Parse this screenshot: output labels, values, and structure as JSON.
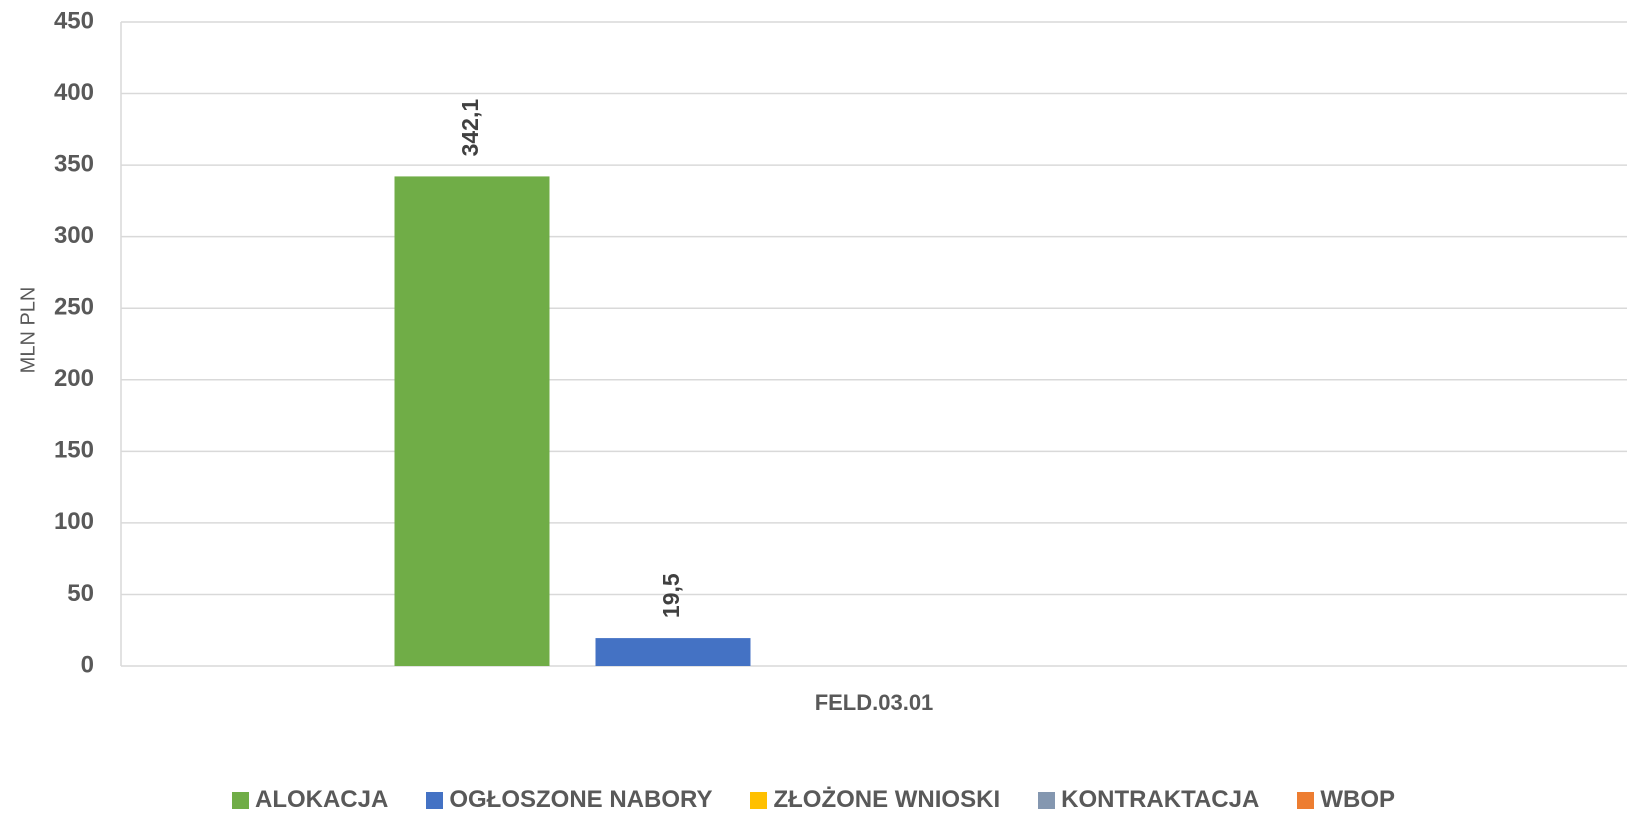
{
  "chart_data": {
    "type": "bar",
    "categories": [
      "FELD.03.01"
    ],
    "ylabel": "MLN PLN",
    "ylim": [
      0,
      450
    ],
    "yticks": [
      0,
      50,
      100,
      150,
      200,
      250,
      300,
      350,
      400,
      450
    ],
    "grid": true,
    "legend_position": "bottom",
    "series": [
      {
        "name": "ALOKACJA",
        "values": [
          342.1
        ],
        "label": "342,1",
        "color": "#70AD47"
      },
      {
        "name": "OGŁOSZONE NABORY",
        "values": [
          19.5
        ],
        "label": "19,5",
        "color": "#4472C4"
      },
      {
        "name": "ZŁOŻONE WNIOSKI",
        "values": [
          0
        ],
        "label": "",
        "color": "#FFC000"
      },
      {
        "name": "KONTRAKTACJA",
        "values": [
          0
        ],
        "label": "",
        "color": "#8497B0"
      },
      {
        "name": "WBOP",
        "values": [
          0
        ],
        "label": "",
        "color": "#ED7D31"
      }
    ]
  }
}
